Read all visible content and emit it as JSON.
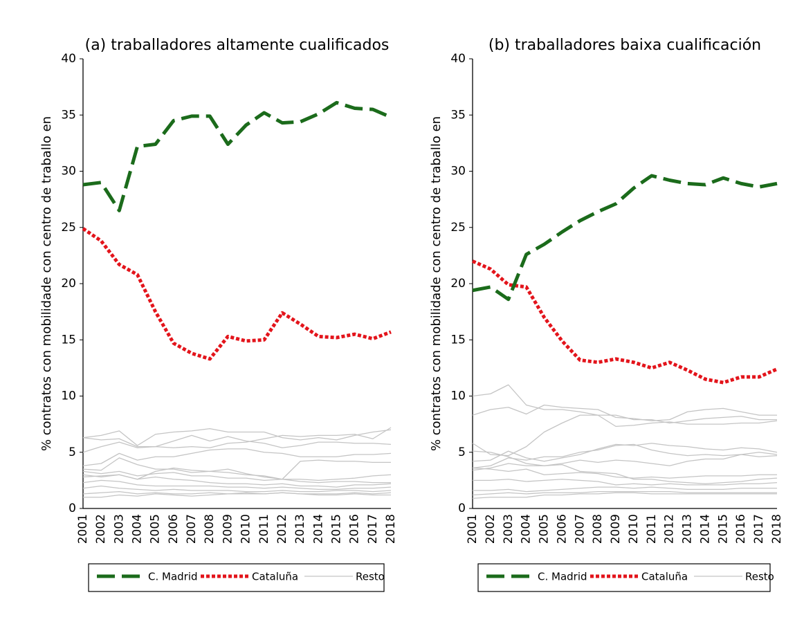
{
  "chart_data": [
    {
      "type": "line",
      "title": "(a) traballadores altamente cualificados",
      "y_label": "% contratos con mobilidade con centro de traballo en",
      "categories": [
        "2001",
        "2002",
        "2003",
        "2004",
        "2005",
        "2006",
        "2007",
        "2008",
        "2009",
        "2010",
        "2011",
        "2012",
        "2013",
        "2014",
        "2015",
        "2016",
        "2017",
        "2018"
      ],
      "ylim": [
        0,
        40
      ],
      "yticks": [
        0,
        5,
        10,
        15,
        20,
        25,
        30,
        35,
        40
      ],
      "series": [
        {
          "name": "C. Madrid",
          "color": "#1b6b1b",
          "line_style": "dashed",
          "values": [
            28.8,
            29.0,
            26.5,
            32.2,
            32.4,
            34.5,
            34.9,
            34.9,
            32.4,
            34.1,
            35.2,
            34.3,
            34.4,
            35.1,
            36.1,
            35.6,
            35.5,
            34.8
          ]
        },
        {
          "name": "Cataluña",
          "color": "#e3141b",
          "line_style": "dotted",
          "values": [
            24.9,
            23.8,
            21.7,
            20.8,
            17.5,
            14.7,
            13.8,
            13.3,
            15.3,
            14.9,
            15.0,
            17.4,
            16.4,
            15.3,
            15.2,
            15.5,
            15.1,
            15.7
          ]
        },
        {
          "name": "Resto",
          "color": "#c4c4c4",
          "line_style": "solid",
          "values": [
            6.3,
            6.5,
            6.9,
            5.6,
            6.6,
            6.8,
            6.9,
            7.1,
            6.8,
            6.8,
            6.8,
            6.3,
            6.1,
            6.3,
            6.1,
            6.5,
            6.8,
            7.0
          ]
        },
        {
          "color": "#c4c4c4",
          "line_style": "solid",
          "values": [
            6.3,
            6.1,
            6.2,
            5.5,
            5.5,
            5.4,
            5.5,
            5.4,
            5.8,
            5.9,
            6.2,
            6.5,
            6.4,
            6.5,
            6.5,
            6.6,
            6.2,
            7.2
          ]
        },
        {
          "color": "#c4c4c4",
          "line_style": "solid",
          "values": [
            3.8,
            4.0,
            4.9,
            4.3,
            4.6,
            4.6,
            4.9,
            5.2,
            5.3,
            5.3,
            5.0,
            4.9,
            4.6,
            4.6,
            4.6,
            4.8,
            4.8,
            4.9
          ]
        },
        {
          "color": "#c4c4c4",
          "line_style": "solid",
          "values": [
            3.5,
            3.4,
            4.5,
            3.9,
            3.5,
            3.5,
            3.2,
            3.3,
            3.2,
            3.0,
            2.9,
            2.6,
            4.2,
            4.3,
            4.2,
            4.2,
            4.1,
            4.1
          ]
        },
        {
          "color": "#c4c4c4",
          "line_style": "solid",
          "values": [
            3.3,
            3.1,
            3.3,
            2.9,
            3.1,
            3.2,
            2.9,
            2.9,
            2.7,
            2.7,
            2.5,
            2.6,
            2.4,
            2.3,
            2.4,
            2.4,
            2.3,
            2.3
          ]
        },
        {
          "color": "#c4c4c4",
          "line_style": "solid",
          "values": [
            2.8,
            2.9,
            3.0,
            2.6,
            2.8,
            2.6,
            2.5,
            2.3,
            2.2,
            2.2,
            2.1,
            2.2,
            2.0,
            2.0,
            1.9,
            2.1,
            2.1,
            2.2
          ]
        },
        {
          "color": "#c4c4c4",
          "line_style": "solid",
          "values": [
            2.3,
            2.5,
            2.4,
            2.1,
            2.0,
            2.0,
            2.0,
            2.0,
            1.9,
            1.9,
            1.8,
            1.9,
            1.8,
            1.7,
            1.7,
            1.8,
            1.8,
            1.9
          ]
        },
        {
          "color": "#c4c4c4",
          "line_style": "solid",
          "values": [
            1.8,
            2.0,
            1.8,
            1.7,
            1.6,
            1.7,
            1.6,
            1.6,
            1.6,
            1.5,
            1.5,
            1.6,
            1.5,
            1.5,
            1.6,
            1.6,
            1.5,
            1.6
          ]
        },
        {
          "color": "#c4c4c4",
          "line_style": "solid",
          "values": [
            1.3,
            1.4,
            1.5,
            1.3,
            1.4,
            1.3,
            1.3,
            1.4,
            1.3,
            1.3,
            1.3,
            1.4,
            1.3,
            1.3,
            1.3,
            1.4,
            1.3,
            1.4
          ]
        },
        {
          "color": "#c4c4c4",
          "line_style": "solid",
          "values": [
            1.0,
            1.0,
            1.2,
            1.1,
            1.3,
            1.2,
            1.1,
            1.2,
            1.3,
            1.4,
            1.3,
            1.4,
            1.3,
            1.2,
            1.2,
            1.3,
            1.2,
            1.2
          ]
        },
        {
          "color": "#c4c4c4",
          "line_style": "solid",
          "values": [
            5.0,
            5.5,
            5.9,
            5.4,
            5.5,
            6.0,
            6.5,
            6.0,
            6.4,
            6.0,
            5.8,
            5.4,
            5.6,
            5.9,
            5.9,
            5.8,
            5.8,
            5.7
          ]
        },
        {
          "color": "#c4c4c4",
          "line_style": "solid",
          "values": [
            3.0,
            2.8,
            3.0,
            2.6,
            3.3,
            3.6,
            3.4,
            3.3,
            3.5,
            3.1,
            2.8,
            2.6,
            2.6,
            2.5,
            2.6,
            2.7,
            2.9,
            3.0
          ]
        }
      ]
    },
    {
      "type": "line",
      "title": "(b) traballadores baixa cualificación",
      "y_label": "% contratos con mobilidade con centro de traballo en",
      "categories": [
        "2001",
        "2002",
        "2003",
        "2004",
        "2005",
        "2006",
        "2007",
        "2008",
        "2009",
        "2010",
        "2011",
        "2012",
        "2013",
        "2014",
        "2015",
        "2016",
        "2017",
        "2018"
      ],
      "ylim": [
        0,
        40
      ],
      "yticks": [
        0,
        5,
        10,
        15,
        20,
        25,
        30,
        35,
        40
      ],
      "series": [
        {
          "name": "C. Madrid",
          "color": "#1b6b1b",
          "line_style": "dashed",
          "values": [
            19.4,
            19.7,
            18.6,
            22.6,
            23.5,
            24.6,
            25.6,
            26.4,
            27.1,
            28.5,
            29.6,
            29.2,
            28.9,
            28.8,
            29.4,
            28.9,
            28.6,
            28.9
          ]
        },
        {
          "name": "Cataluña",
          "color": "#e3141b",
          "line_style": "dotted",
          "values": [
            22.0,
            21.3,
            19.9,
            19.7,
            17.0,
            14.9,
            13.2,
            13.0,
            13.3,
            13.0,
            12.5,
            13.0,
            12.3,
            11.5,
            11.2,
            11.7,
            11.7,
            12.4
          ]
        },
        {
          "name": "Resto",
          "color": "#c4c4c4",
          "line_style": "solid",
          "values": [
            8.3,
            8.8,
            9.0,
            8.4,
            9.2,
            9.0,
            8.9,
            8.8,
            8.1,
            8.0,
            7.8,
            7.9,
            8.6,
            8.8,
            8.9,
            8.6,
            8.3,
            8.3
          ]
        },
        {
          "color": "#c4c4c4",
          "line_style": "solid",
          "values": [
            10.0,
            10.2,
            11.0,
            9.2,
            8.8,
            8.8,
            8.6,
            8.3,
            8.3,
            7.9,
            7.9,
            7.6,
            7.8,
            8.0,
            8.1,
            8.2,
            7.9,
            7.9
          ]
        },
        {
          "color": "#c4c4c4",
          "line_style": "solid",
          "values": [
            5.8,
            4.8,
            4.7,
            5.5,
            6.8,
            7.6,
            8.3,
            8.3,
            7.3,
            7.4,
            7.6,
            7.7,
            7.5,
            7.5,
            7.5,
            7.6,
            7.6,
            7.8
          ]
        },
        {
          "color": "#c4c4c4",
          "line_style": "solid",
          "values": [
            4.2,
            4.3,
            5.1,
            4.5,
            4.2,
            4.5,
            4.8,
            5.3,
            5.7,
            5.6,
            5.8,
            5.6,
            5.5,
            5.3,
            5.2,
            5.4,
            5.3,
            5.0
          ]
        },
        {
          "color": "#c4c4c4",
          "line_style": "solid",
          "values": [
            3.6,
            3.8,
            4.5,
            4.3,
            4.6,
            4.6,
            5.0,
            5.2,
            5.6,
            5.7,
            5.2,
            4.9,
            4.7,
            4.8,
            4.7,
            4.8,
            4.6,
            4.7
          ]
        },
        {
          "color": "#c4c4c4",
          "line_style": "solid",
          "values": [
            5.1,
            5.0,
            4.6,
            4.0,
            3.8,
            4.0,
            4.3,
            4.1,
            4.3,
            4.2,
            4.0,
            3.8,
            4.2,
            4.4,
            4.4,
            4.8,
            5.0,
            4.8
          ]
        },
        {
          "color": "#c4c4c4",
          "line_style": "solid",
          "values": [
            3.6,
            3.5,
            3.3,
            3.5,
            3.0,
            3.1,
            3.2,
            3.1,
            2.8,
            2.7,
            2.8,
            2.7,
            2.8,
            2.9,
            2.9,
            2.9,
            3.0,
            3.0
          ]
        },
        {
          "color": "#c4c4c4",
          "line_style": "solid",
          "values": [
            3.4,
            3.6,
            4.0,
            3.8,
            3.8,
            3.9,
            3.3,
            3.2,
            3.1,
            2.6,
            2.6,
            2.4,
            2.3,
            2.2,
            2.3,
            2.4,
            2.6,
            2.7
          ]
        },
        {
          "color": "#c4c4c4",
          "line_style": "solid",
          "values": [
            2.5,
            2.5,
            2.6,
            2.4,
            2.5,
            2.6,
            2.5,
            2.4,
            2.1,
            2.2,
            2.1,
            2.2,
            2.1,
            2.1,
            2.1,
            2.2,
            2.2,
            2.3
          ]
        },
        {
          "color": "#c4c4c4",
          "line_style": "solid",
          "values": [
            1.6,
            1.6,
            1.7,
            1.5,
            1.6,
            1.7,
            1.8,
            1.9,
            1.9,
            1.8,
            1.9,
            1.8,
            1.7,
            1.7,
            1.7,
            1.8,
            1.8,
            1.8
          ]
        },
        {
          "color": "#c4c4c4",
          "line_style": "solid",
          "values": [
            1.2,
            1.3,
            1.4,
            1.3,
            1.4,
            1.4,
            1.4,
            1.5,
            1.5,
            1.5,
            1.5,
            1.5,
            1.4,
            1.4,
            1.4,
            1.4,
            1.4,
            1.4
          ]
        },
        {
          "color": "#c4c4c4",
          "line_style": "solid",
          "values": [
            0.9,
            1.0,
            1.0,
            1.0,
            1.2,
            1.2,
            1.3,
            1.3,
            1.4,
            1.4,
            1.3,
            1.3,
            1.3,
            1.3,
            1.3,
            1.3,
            1.3,
            1.3
          ]
        }
      ]
    }
  ]
}
